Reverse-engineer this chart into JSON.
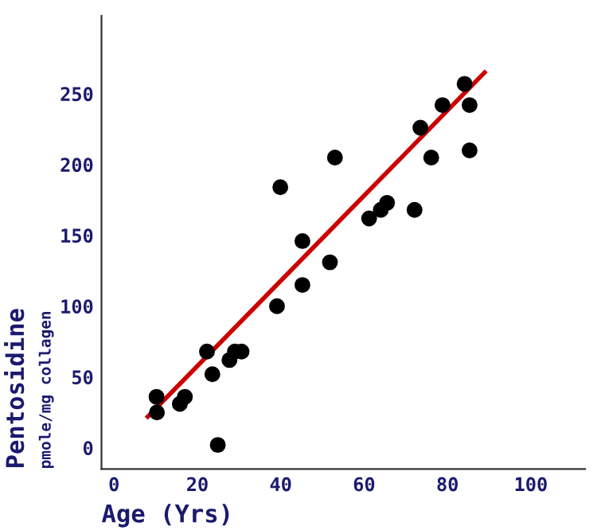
{
  "chart_data": {
    "type": "scatter",
    "xlabel": "Age (Yrs)",
    "ylabel": "Pentosidine",
    "annotations": [
      "pmole/mg collagen"
    ],
    "xlim": [
      -3,
      113
    ],
    "ylim": [
      -15,
      305
    ],
    "xticks": [
      0,
      20,
      40,
      60,
      80,
      100
    ],
    "yticks": [
      0,
      50,
      100,
      150,
      200,
      250
    ],
    "grid": false,
    "legend": false,
    "series": [
      {
        "color": "#000000",
        "marker": "circle",
        "x": [
          10.2,
          10.3,
          15.8,
          17.0,
          22.3,
          23.6,
          24.9,
          27.7,
          29.0,
          30.6,
          39.1,
          39.9,
          45.2,
          45.2,
          51.8,
          53.0,
          61.2,
          64.0,
          65.5,
          72.1,
          73.5,
          76.1,
          78.8,
          84.1,
          85.3,
          85.3
        ],
        "values": [
          36,
          25,
          31,
          36,
          68,
          52,
          2,
          62,
          68,
          68,
          100,
          184,
          146,
          115,
          131,
          205,
          162,
          168,
          173,
          168,
          226,
          205,
          242,
          257,
          242,
          210
        ]
      },
      {
        "type": "line",
        "color": "#cc0000",
        "x": [
          8.1,
          88.9
        ],
        "values": [
          22,
          265
        ],
        "marker": "none",
        "line_style": "solid"
      }
    ]
  }
}
